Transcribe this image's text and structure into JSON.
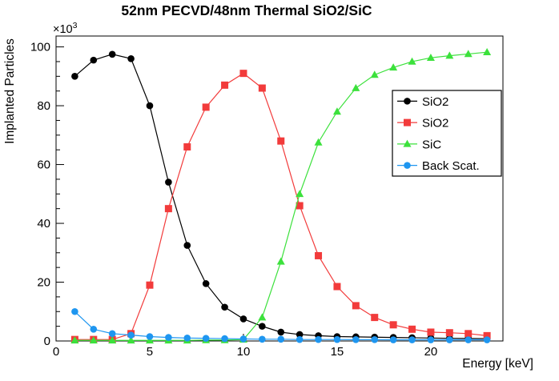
{
  "chart_data": {
    "type": "line",
    "title": "52nm PECVD/48nm Thermal SiO2/SiC",
    "xlabel": "Energy [keV]",
    "ylabel": "Implanted Particles",
    "y_scale_factor_base": "×10",
    "y_scale_factor_exp": "3",
    "x": [
      1,
      2,
      3,
      4,
      5,
      6,
      7,
      8,
      9,
      10,
      11,
      12,
      13,
      14,
      15,
      16,
      17,
      18,
      19,
      20,
      21,
      22,
      23
    ],
    "series": [
      {
        "name": "SiO2",
        "color": "#000000",
        "marker": "circle",
        "values": [
          90,
          95.5,
          97.5,
          96,
          80,
          54,
          32.5,
          19.5,
          11.5,
          7.5,
          5,
          3,
          2.2,
          1.8,
          1.5,
          1.4,
          1.3,
          1.2,
          1.1,
          1.0,
          0.9,
          0.85,
          0.8
        ]
      },
      {
        "name": "SiO2",
        "color": "#f23b3b",
        "marker": "square",
        "values": [
          0.5,
          0.5,
          0.5,
          2.5,
          19,
          45,
          66,
          79.5,
          87,
          91,
          86,
          68,
          46,
          29,
          18.5,
          12,
          8,
          5.5,
          4,
          3,
          2.8,
          2.5,
          1.8
        ]
      },
      {
        "name": "SiC",
        "color": "#3ce13c",
        "marker": "triangle",
        "values": [
          0.2,
          0.2,
          0.2,
          0.2,
          0.2,
          0.2,
          0.2,
          0.3,
          0.3,
          0.5,
          8,
          27,
          50,
          67.5,
          78,
          86,
          90.5,
          93,
          95,
          96.3,
          97,
          97.6,
          98.2
        ]
      },
      {
        "name": "Back Scat.",
        "color": "#1e96f0",
        "marker": "circle",
        "values": [
          10,
          4,
          2.5,
          2,
          1.5,
          1.2,
          1,
          0.9,
          0.8,
          0.7,
          0.6,
          0.6,
          0.5,
          0.5,
          0.5,
          0.45,
          0.45,
          0.4,
          0.4,
          0.4,
          0.4,
          0.4,
          0.4
        ]
      }
    ],
    "xlim": [
      0,
      23.85
    ],
    "ylim": [
      0,
      103.7
    ],
    "xticks": {
      "major": [
        0,
        5,
        10,
        15,
        20
      ],
      "minor_step": 1
    },
    "yticks": {
      "major": [
        0,
        20,
        40,
        60,
        80,
        100
      ],
      "minor_step": 5
    },
    "grid": false,
    "legend": {
      "position": "right-middle",
      "entries": [
        "SiO2",
        "SiO2",
        "SiC",
        "Back Scat."
      ]
    },
    "axis_color": "#000000",
    "background_color": "#ffffff"
  }
}
